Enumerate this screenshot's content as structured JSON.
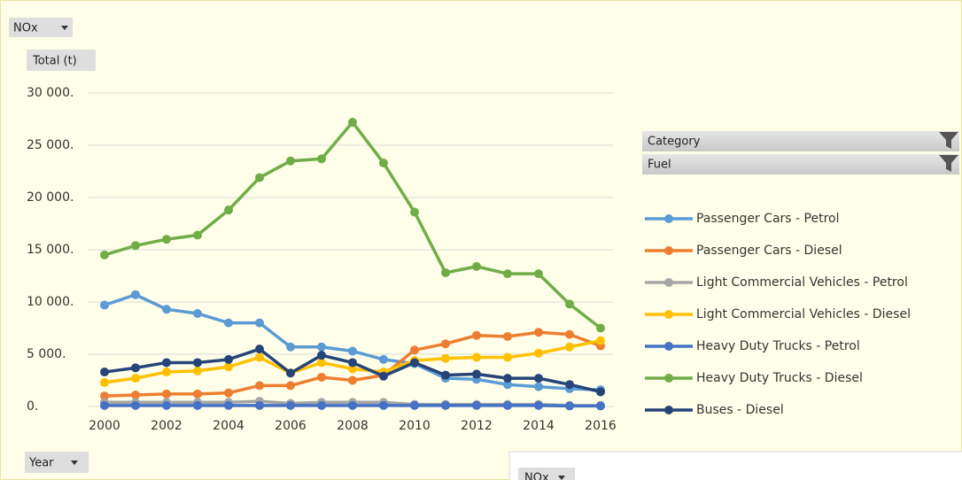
{
  "chart_data": {
    "type": "line",
    "filter_button": "NOx",
    "y_label": "Total (t)",
    "axis_field": "Year",
    "legend_fields": [
      "Category",
      "Fuel"
    ],
    "second_panel_button": "NOx",
    "x": [
      2000,
      2001,
      2002,
      2003,
      2004,
      2005,
      2006,
      2007,
      2008,
      2009,
      2010,
      2011,
      2012,
      2013,
      2014,
      2015,
      2016
    ],
    "xlim": [
      2000,
      2016
    ],
    "xticks": [
      2000,
      2002,
      2004,
      2006,
      2008,
      2010,
      2012,
      2014,
      2016
    ],
    "ylim": [
      0,
      30000
    ],
    "yticks": [
      {
        "value": 0,
        "label": "0."
      },
      {
        "value": 5000,
        "label": "5 000."
      },
      {
        "value": 10000,
        "label": "10 000."
      },
      {
        "value": 15000,
        "label": "15 000."
      },
      {
        "value": 20000,
        "label": "20 000."
      },
      {
        "value": 25000,
        "label": "25 000."
      },
      {
        "value": 30000,
        "label": "30 000."
      }
    ],
    "grid": true,
    "legend_position": "right",
    "series": [
      {
        "name": "Passenger Cars - Petrol",
        "color": "#5b9bd5",
        "values": [
          9700,
          10700,
          9300,
          8900,
          8000,
          8000,
          5700,
          5700,
          5300,
          4500,
          4100,
          2700,
          2600,
          2100,
          1900,
          1700,
          1600
        ]
      },
      {
        "name": "Passenger Cars - Diesel",
        "color": "#ed7d31",
        "values": [
          1000,
          1100,
          1200,
          1200,
          1300,
          2000,
          2000,
          2800,
          2500,
          3000,
          5400,
          6000,
          6800,
          6700,
          7100,
          6900,
          5800
        ]
      },
      {
        "name": "Light Commercial Vehicles - Petrol",
        "color": "#a5a5a5",
        "values": [
          400,
          400,
          400,
          400,
          400,
          500,
          300,
          400,
          400,
          400,
          200,
          200,
          200,
          200,
          200,
          100,
          100
        ]
      },
      {
        "name": "Light Commercial Vehicles - Diesel",
        "color": "#ffc000",
        "values": [
          2300,
          2700,
          3300,
          3400,
          3800,
          4700,
          3200,
          4200,
          3600,
          3300,
          4400,
          4600,
          4700,
          4700,
          5100,
          5700,
          6300
        ]
      },
      {
        "name": "Heavy Duty Trucks - Petrol",
        "color": "#4472c4",
        "values": [
          100,
          100,
          100,
          100,
          100,
          100,
          100,
          100,
          100,
          100,
          100,
          100,
          100,
          100,
          100,
          50,
          50
        ]
      },
      {
        "name": "Heavy Duty Trucks - Diesel",
        "color": "#70ad47",
        "values": [
          14500,
          15400,
          16000,
          16400,
          18800,
          21900,
          23500,
          23700,
          27200,
          23300,
          18600,
          12800,
          13400,
          12700,
          12700,
          9800,
          7500
        ]
      },
      {
        "name": "Buses - Diesel",
        "color": "#264478",
        "values": [
          3300,
          3700,
          4200,
          4200,
          4500,
          5500,
          3200,
          4900,
          4200,
          2900,
          4200,
          3000,
          3100,
          2700,
          2700,
          2100,
          1400
        ]
      }
    ]
  }
}
